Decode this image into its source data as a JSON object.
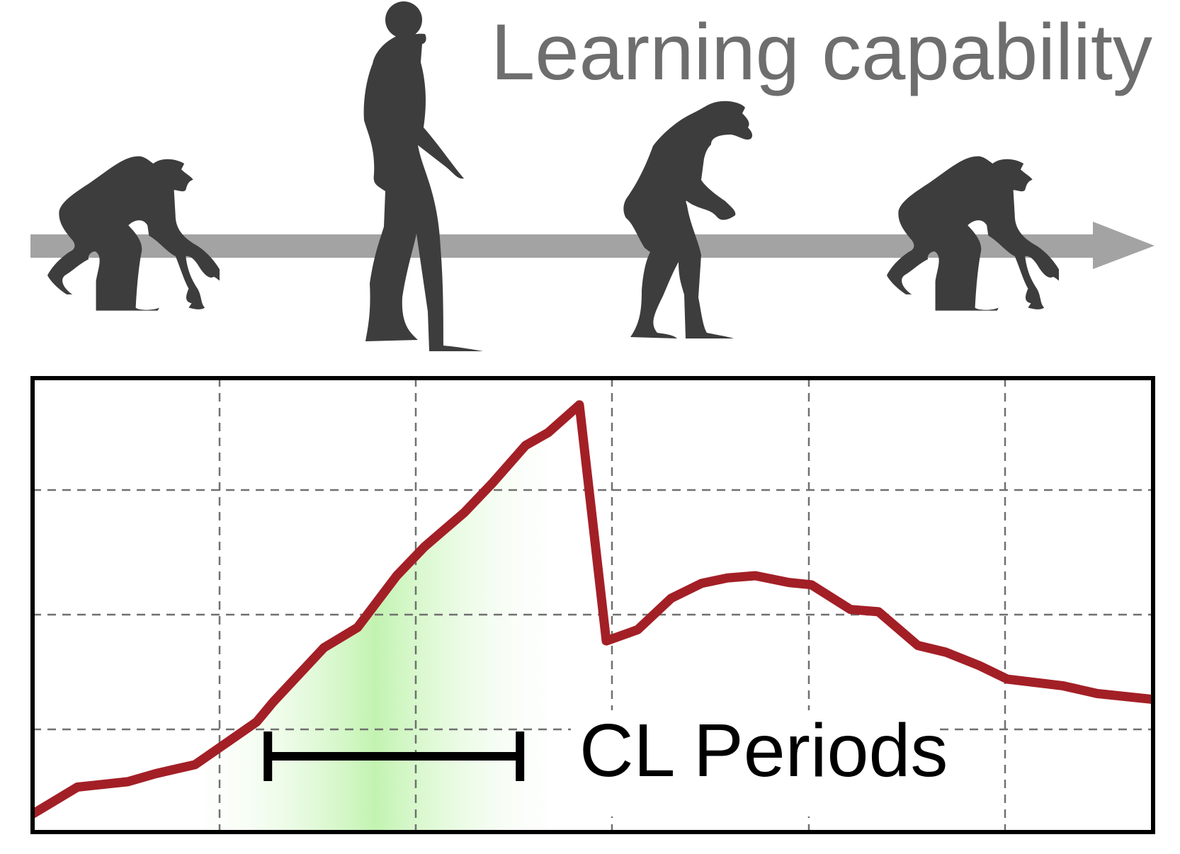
{
  "figure": {
    "title": "Learning capability",
    "period_label": "CL Periods",
    "figures": [
      "ape",
      "human",
      "hominid",
      "ape"
    ],
    "colors": {
      "silhouette": "#3d3d3d",
      "arrow": "#a3a3a3",
      "title": "#6e6e6e",
      "curve": "#a31f26",
      "shade": "#c9f5bc",
      "grid": "#707070",
      "frame": "#000000"
    }
  },
  "chart_data": {
    "type": "line",
    "title": "Learning capability",
    "xlabel": "",
    "ylabel": "",
    "xlim": [
      0,
      100
    ],
    "ylim": [
      0,
      100
    ],
    "grid": true,
    "annotation": "CL Periods",
    "series": [
      {
        "x": [
          0,
          4,
          8.5,
          11,
          14.5,
          20,
          21.5,
          26,
          29,
          32.5,
          35,
          38.5,
          41,
          44,
          46,
          48.8,
          51.2,
          54,
          57,
          59.7,
          62,
          64.5,
          67.5,
          69.5,
          73,
          75.5,
          79,
          81.5,
          84.5,
          87,
          92,
          95,
          100
        ],
        "values": [
          4,
          10,
          11.2,
          13,
          15,
          24.5,
          29,
          41,
          45.5,
          57,
          63.5,
          71,
          77.5,
          86,
          88.8,
          95,
          42.5,
          45,
          52,
          55.3,
          56.5,
          57,
          55.5,
          55,
          49.5,
          49,
          41.5,
          40,
          37,
          34,
          32.5,
          30.8,
          29.5
        ]
      }
    ],
    "highlight_x": [
      21,
      43.5
    ]
  }
}
